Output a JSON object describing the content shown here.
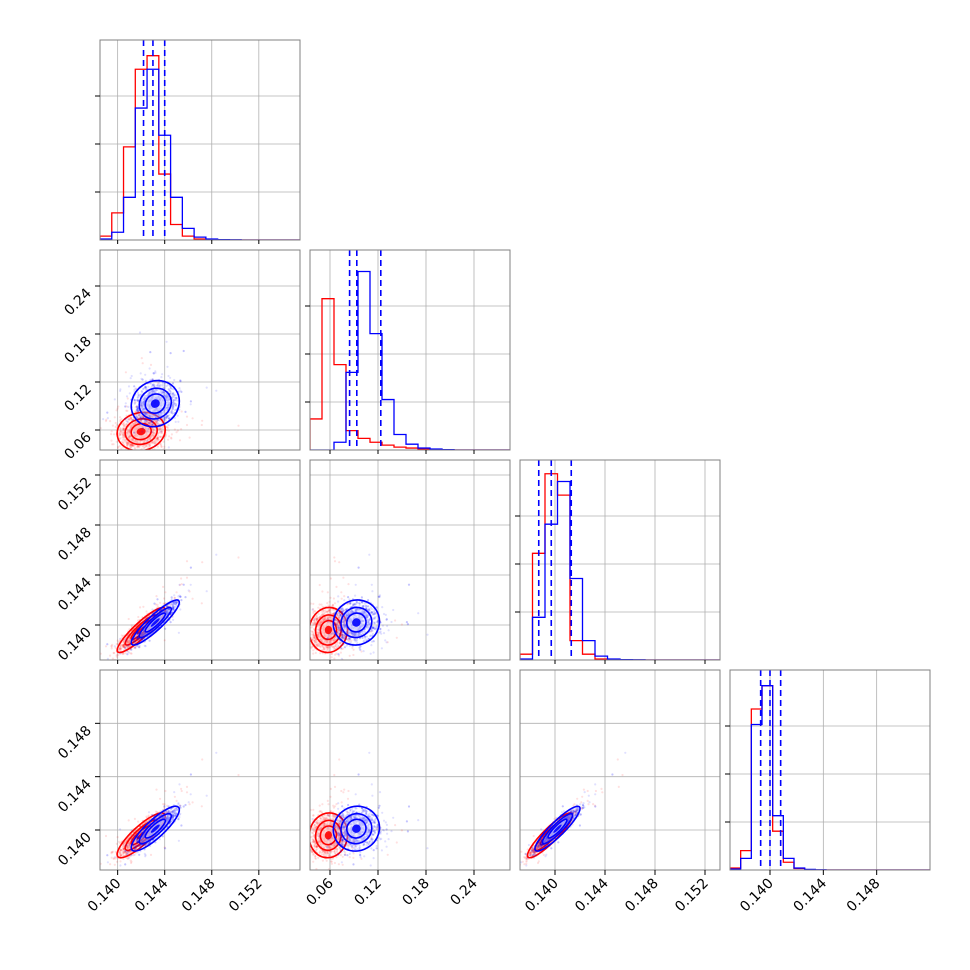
{
  "chart_data": {
    "type": "corner",
    "colors": {
      "red": "#ff0000",
      "blue": "#0000ff"
    },
    "dims": [
      {
        "range": [
          0.1385,
          0.1555
        ],
        "ticks": [
          "0.140",
          "0.144",
          "0.148",
          "0.152"
        ]
      },
      {
        "range": [
          0.035,
          0.285
        ],
        "ticks": [
          "0.06",
          "0.12",
          "0.18",
          "0.24"
        ]
      },
      {
        "range": [
          0.1372,
          0.1532
        ],
        "ticks": [
          "0.140",
          "0.144",
          "0.148",
          "0.152"
        ]
      },
      {
        "range": [
          0.137,
          0.152
        ],
        "ticks": [
          "0.140",
          "0.144",
          "0.148"
        ]
      }
    ],
    "marginals": [
      {
        "edges": [
          0.1385,
          0.1395,
          0.1405,
          0.1415,
          0.1425,
          0.1435,
          0.1445,
          0.1455,
          0.1465,
          0.1475,
          0.1485,
          0.1495,
          0.1505,
          0.1515,
          0.1525,
          0.1535,
          0.1545,
          0.1555
        ],
        "red": [
          2,
          14,
          48,
          88,
          95,
          34,
          8,
          2,
          0.5,
          0.2,
          0,
          0,
          0,
          0,
          0,
          0,
          0
        ],
        "blue": [
          0.5,
          4,
          22,
          68,
          88,
          54,
          22,
          6,
          1.5,
          0.5,
          0.2,
          0.1,
          0,
          0,
          0,
          0,
          0
        ],
        "quantiles": [
          0.1422,
          0.143,
          0.144
        ]
      },
      {
        "edges": [
          0.035,
          0.05,
          0.065,
          0.08,
          0.095,
          0.11,
          0.125,
          0.14,
          0.155,
          0.17,
          0.185,
          0.2,
          0.215,
          0.23,
          0.245,
          0.26,
          0.275,
          0.285
        ],
        "red": [
          16,
          78,
          44,
          10,
          6,
          4,
          2.5,
          1.5,
          1,
          0.5,
          0.3,
          0.2,
          0,
          0,
          0,
          0,
          0
        ],
        "blue": [
          0,
          0,
          4,
          40,
          92,
          60,
          26,
          8,
          3,
          1,
          0.5,
          0.2,
          0,
          0,
          0,
          0,
          0
        ],
        "quantiles": [
          0.0845,
          0.0935,
          0.1235
        ]
      },
      {
        "edges": [
          0.1372,
          0.1382,
          0.1392,
          0.1402,
          0.1412,
          0.1422,
          0.1432,
          0.1442,
          0.1452,
          0.1462,
          0.1472,
          0.1482,
          0.1492,
          0.1502,
          0.1512,
          0.1522,
          0.1532
        ],
        "red": [
          3,
          55,
          96,
          85,
          10,
          3,
          0.5,
          0.2,
          0,
          0,
          0,
          0,
          0,
          0,
          0,
          0
        ],
        "blue": [
          0.5,
          22,
          70,
          92,
          42,
          10,
          2,
          0.5,
          0.2,
          0.1,
          0,
          0,
          0,
          0,
          0,
          0
        ],
        "quantiles": [
          0.1387,
          0.1397,
          0.1413
        ]
      },
      {
        "edges": [
          0.137,
          0.1378,
          0.1386,
          0.1394,
          0.1402,
          0.141,
          0.1418,
          0.1426,
          0.1434,
          0.1442,
          0.145,
          0.1458,
          0.1466,
          0.1474,
          0.1482,
          0.149,
          0.1498,
          0.1506,
          0.1514,
          0.152
        ],
        "red": [
          1,
          10,
          83,
          95,
          20,
          4,
          0.8,
          0.2,
          0,
          0,
          0,
          0,
          0,
          0,
          0,
          0,
          0,
          0,
          0
        ],
        "blue": [
          0.5,
          6,
          75,
          95,
          28,
          6,
          1,
          0.3,
          0.1,
          0,
          0,
          0,
          0,
          0,
          0,
          0,
          0,
          0,
          0
        ],
        "quantiles": [
          0.1393,
          0.14,
          0.1408
        ]
      }
    ],
    "samples": {
      "red": {
        "mean": [
          0.142,
          0.058,
          0.1396,
          0.1396
        ],
        "sd": [
          0.00085,
          0.01,
          0.00075,
          0.0007
        ],
        "corr": [
          [
            1,
            0.1,
            0.9,
            0.85
          ],
          [
            0.1,
            1,
            0.05,
            0.05
          ],
          [
            0.9,
            0.05,
            1,
            0.9
          ],
          [
            0.85,
            0.05,
            0.9,
            1
          ]
        ]
      },
      "blue": {
        "mean": [
          0.1432,
          0.093,
          0.1402,
          0.1401
        ],
        "sd": [
          0.00085,
          0.012,
          0.00075,
          0.0007
        ],
        "corr": [
          [
            1,
            0.1,
            0.9,
            0.85
          ],
          [
            0.1,
            1,
            0.05,
            0.05
          ],
          [
            0.9,
            0.05,
            1,
            0.9
          ],
          [
            0.85,
            0.05,
            0.9,
            1
          ]
        ]
      }
    }
  }
}
